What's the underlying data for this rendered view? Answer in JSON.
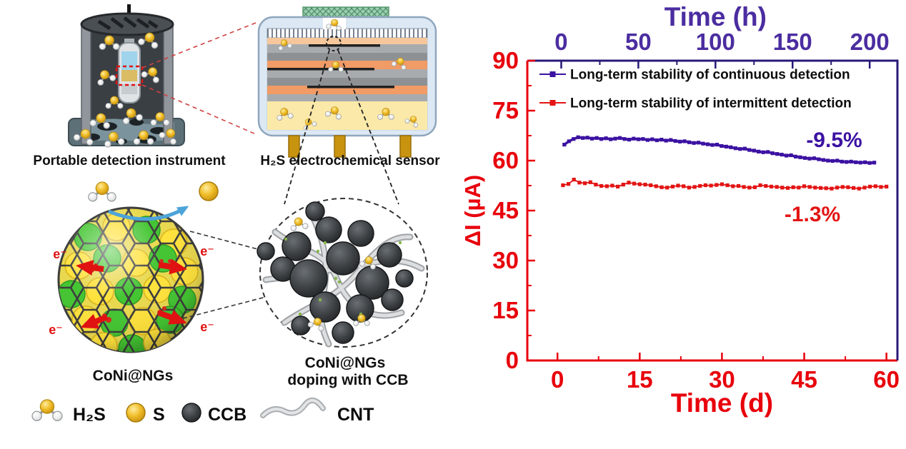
{
  "illustrations": {
    "instrument_caption": "Portable detection instrument",
    "sensor_caption": "H₂S electrochemical sensor",
    "sphere_caption": "CoNi@NGs",
    "cluster_caption_line1": "CoNi@NGs",
    "cluster_caption_line2": "doping with CCB",
    "electron_label": "e⁻"
  },
  "material_legend": {
    "items": [
      {
        "icon": "h2s-molecule-icon",
        "label": "H₂S"
      },
      {
        "icon": "sulfur-sphere-icon",
        "label": "S"
      },
      {
        "icon": "ccb-sphere-icon",
        "label": "CCB"
      },
      {
        "icon": "cnt-tube-icon",
        "label": "CNT"
      }
    ]
  },
  "chart_data": {
    "type": "line",
    "title": "",
    "grid": false,
    "legend_position": "inside-top-left",
    "y_axis": {
      "label": "ΔI (µA)",
      "range": [
        0,
        90
      ],
      "ticks": [
        0,
        15,
        30,
        45,
        60,
        75,
        90
      ],
      "minor_ticks": [
        7.5,
        22.5,
        37.5,
        52.5,
        67.5,
        82.5
      ],
      "color": "#e8000b"
    },
    "x_bottom_axis": {
      "label": "Time (d)",
      "range": [
        -5.5,
        62
      ],
      "ticks": [
        0,
        15,
        30,
        45,
        60
      ],
      "minor_ticks": [
        7.5,
        22.5,
        37.5,
        52.5
      ],
      "color": "#e8000b"
    },
    "x_top_axis": {
      "label": "Time (h)",
      "range": [
        -22,
        218
      ],
      "ticks": [
        0,
        50,
        100,
        150,
        200
      ],
      "minor_ticks": [
        25,
        75,
        125,
        175
      ],
      "color": "#4b2da0",
      "line_color": "#2a1878"
    },
    "series": [
      {
        "name": "Long-term stability of continuous detection",
        "color": "#3c12a2",
        "x_axis": "top",
        "line_width": 3.5,
        "annotation": {
          "text": "-9.5%",
          "x": 177,
          "y": 64.1
        },
        "x": [
          2,
          5,
          8,
          11,
          14,
          17,
          20,
          23,
          26,
          29,
          32,
          35,
          38,
          41,
          44,
          47,
          50,
          53,
          56,
          59,
          62,
          65,
          68,
          71,
          74,
          77,
          80,
          83,
          86,
          89,
          92,
          95,
          98,
          101,
          104,
          107,
          110,
          113,
          116,
          119,
          122,
          125,
          128,
          131,
          134,
          137,
          140,
          143,
          146,
          149,
          152,
          155,
          158,
          161,
          164,
          167,
          170,
          173,
          176,
          179,
          182,
          185,
          188,
          191,
          194,
          197,
          200,
          203
        ],
        "y": [
          64.8,
          65.8,
          66.5,
          67.0,
          66.8,
          66.9,
          66.6,
          66.8,
          66.5,
          66.7,
          66.4,
          66.6,
          66.8,
          66.5,
          66.3,
          66.6,
          66.4,
          66.5,
          66.2,
          66.4,
          66.1,
          66.3,
          66.0,
          66.2,
          65.9,
          65.7,
          65.8,
          65.5,
          65.3,
          65.4,
          65.1,
          64.9,
          64.7,
          64.8,
          64.4,
          64.2,
          64.0,
          63.7,
          63.5,
          63.6,
          63.2,
          63.0,
          62.7,
          62.5,
          62.6,
          62.2,
          62.0,
          61.8,
          61.5,
          61.6,
          61.2,
          61.0,
          60.8,
          60.6,
          60.7,
          60.4,
          60.2,
          60.0,
          59.9,
          60.0,
          59.7,
          59.6,
          59.7,
          59.5,
          59.4,
          59.5,
          59.3,
          59.4
        ]
      },
      {
        "name": "Long-term stability of intermittent detection",
        "color": "#e31414",
        "x_axis": "bottom",
        "line_width": 1.8,
        "annotation": {
          "text": "-1.3%",
          "x": 46.5,
          "y": 41.8
        },
        "x": [
          1,
          2,
          3,
          4,
          5,
          6,
          7,
          8,
          9,
          10,
          11,
          12,
          13,
          14,
          15,
          16,
          17,
          18,
          19,
          20,
          21,
          22,
          23,
          24,
          25,
          26,
          27,
          28,
          29,
          30,
          31,
          32,
          33,
          34,
          35,
          36,
          37,
          38,
          39,
          40,
          41,
          42,
          43,
          44,
          45,
          46,
          47,
          48,
          49,
          50,
          51,
          52,
          53,
          54,
          55,
          56,
          57,
          58,
          59,
          60
        ],
        "y": [
          52.6,
          53.0,
          54.3,
          53.4,
          53.2,
          53.5,
          52.8,
          52.4,
          52.3,
          52.5,
          52.2,
          52.8,
          53.4,
          53.1,
          52.9,
          52.8,
          52.6,
          52.3,
          52.0,
          51.9,
          52.2,
          52.5,
          52.3,
          51.9,
          52.1,
          52.4,
          52.6,
          52.5,
          52.7,
          52.9,
          52.6,
          52.3,
          52.4,
          52.1,
          51.9,
          52.0,
          52.6,
          52.4,
          52.2,
          52.1,
          51.9,
          51.8,
          52.0,
          51.9,
          52.3,
          52.1,
          51.9,
          51.8,
          51.7,
          51.6,
          51.9,
          52.1,
          52.0,
          51.8,
          51.6,
          51.9,
          52.2,
          52.3,
          52.1,
          52.2
        ]
      }
    ]
  }
}
